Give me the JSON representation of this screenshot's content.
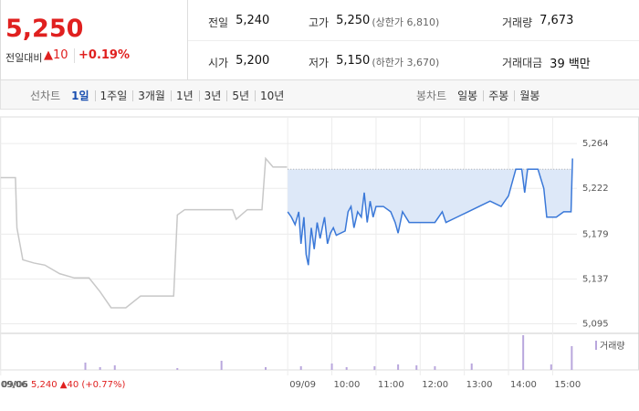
{
  "quote": {
    "price": "5,250",
    "change_label": "전일대비",
    "change": "▲10",
    "change_pct": "+0.19%",
    "fields": [
      [
        {
          "label": "전일",
          "value": "5,240"
        },
        {
          "label": "고가",
          "value": "5,250",
          "note": "(상한가 6,810)"
        },
        {
          "label": "거래량",
          "value": "7,673"
        }
      ],
      [
        {
          "label": "시가",
          "value": "5,200"
        },
        {
          "label": "저가",
          "value": "5,150",
          "note": "(하한가 3,670)"
        },
        {
          "label": "거래대금",
          "value": "39 백만"
        }
      ]
    ]
  },
  "tabs": {
    "line_label": "선차트",
    "line_periods": [
      "1일",
      "1주일",
      "3개월",
      "1년",
      "3년",
      "5년",
      "10년"
    ],
    "candle_label": "봉차트",
    "candle_periods": [
      "일봉",
      "주봉",
      "월봉"
    ]
  },
  "footer": {
    "date": "09/06",
    "info": "5,240 ▲40 (+0.77%)"
  },
  "chart_data": {
    "type": "line",
    "xlim": [
      -391,
      393
    ],
    "ylim": [
      5086,
      5289
    ],
    "xticks": [
      {
        "value": -390,
        "label": "09/06"
      },
      {
        "value": 0,
        "label": "09/09"
      },
      {
        "value": 60,
        "label": "10:00"
      },
      {
        "value": 120,
        "label": "11:00"
      },
      {
        "value": 180,
        "label": "12:00"
      },
      {
        "value": 240,
        "label": "13:00"
      },
      {
        "value": 300,
        "label": "14:00"
      },
      {
        "value": 360,
        "label": "15:00"
      }
    ],
    "yticks": [
      {
        "value": 5095,
        "label": "5,095"
      },
      {
        "value": 5137,
        "label": "5,137"
      },
      {
        "value": 5179,
        "label": "5,179"
      },
      {
        "value": 5222,
        "label": "5,222"
      },
      {
        "value": 5264,
        "label": "5,264"
      }
    ],
    "grid": true,
    "reference": 5240,
    "series": [
      {
        "color": "#c8c8c8",
        "x": [
          -390,
          -370,
          -368,
          -360,
          -345,
          -330,
          -310,
          -290,
          -270,
          -255,
          -240,
          -220,
          -200,
          -175,
          -155,
          -150,
          -140,
          -100,
          -75,
          -70,
          -55,
          -35,
          -30,
          -20,
          -1
        ],
        "values": [
          5232,
          5232,
          5185,
          5155,
          5152,
          5150,
          5142,
          5138,
          5138,
          5125,
          5110,
          5110,
          5121,
          5121,
          5121,
          5197,
          5202,
          5202,
          5202,
          5193,
          5202,
          5202,
          5250,
          5242,
          5242
        ]
      },
      {
        "color": "#3a78d8",
        "x": [
          0,
          5,
          10,
          15,
          18,
          22,
          25,
          28,
          32,
          36,
          40,
          44,
          50,
          54,
          58,
          62,
          66,
          72,
          78,
          82,
          86,
          90,
          95,
          100,
          104,
          108,
          112,
          116,
          120,
          130,
          140,
          146,
          150,
          156,
          165,
          180,
          200,
          210,
          215,
          230,
          245,
          260,
          275,
          290,
          300,
          310,
          318,
          322,
          326,
          340,
          348,
          352,
          365,
          375,
          385,
          387
        ],
        "values": [
          5200,
          5195,
          5188,
          5200,
          5170,
          5195,
          5160,
          5150,
          5185,
          5165,
          5190,
          5175,
          5195,
          5170,
          5180,
          5185,
          5178,
          5180,
          5182,
          5200,
          5205,
          5185,
          5200,
          5195,
          5218,
          5190,
          5210,
          5195,
          5205,
          5205,
          5200,
          5190,
          5180,
          5200,
          5190,
          5190,
          5190,
          5200,
          5190,
          5195,
          5200,
          5205,
          5210,
          5205,
          5215,
          5240,
          5240,
          5218,
          5240,
          5240,
          5222,
          5195,
          5195,
          5200,
          5200,
          5250
        ]
      }
    ],
    "volume": {
      "name": "거래량",
      "color": "#b9a7dd",
      "vlim": [
        0,
        2000
      ],
      "x": [
        -275,
        -255,
        -235,
        -150,
        -90,
        -30,
        18,
        60,
        80,
        118,
        150,
        175,
        200,
        250,
        320,
        358,
        386
      ],
      "values": [
        400,
        150,
        250,
        100,
        500,
        150,
        200,
        350,
        150,
        200,
        300,
        250,
        200,
        350,
        1900,
        300,
        1300
      ]
    }
  }
}
